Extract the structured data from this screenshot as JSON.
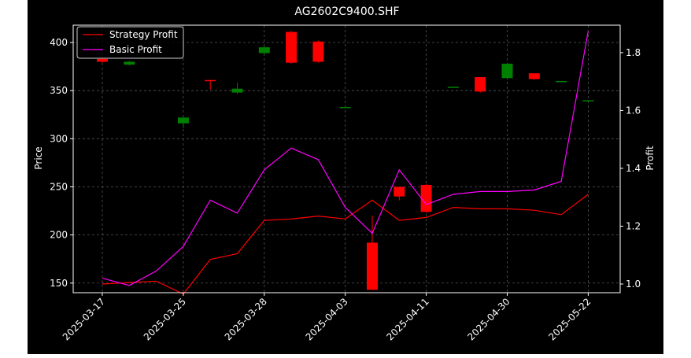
{
  "chart_data": {
    "type": "candlestick+line",
    "title": "AG2602C9400.SHF",
    "xlabel": "",
    "ylabel_left": "Price",
    "ylabel_right": "Profit",
    "ylim_left": [
      140,
      418
    ],
    "ylim_right": [
      0.97,
      1.895
    ],
    "yticks_left": [
      "150",
      "200",
      "250",
      "300",
      "350",
      "400"
    ],
    "yticks_right": [
      "1.0",
      "1.2",
      "1.4",
      "1.6",
      "1.8"
    ],
    "xtick_labels": [
      "2025-03-17",
      "2025-03-25",
      "2025-03-28",
      "2025-04-03",
      "2025-04-11",
      "2025-04-30",
      "2025-05-22"
    ],
    "xtick_indices": [
      0,
      3,
      6,
      9,
      12,
      15,
      18
    ],
    "grid": true,
    "legend_position": "upper-left",
    "series": [
      {
        "name": "Strategy Profit",
        "color": "#ff0000",
        "values": [
          1.0,
          1.005,
          1.01,
          0.965,
          1.085,
          1.105,
          1.22,
          1.225,
          1.235,
          1.225,
          1.29,
          1.22,
          1.23,
          1.265,
          1.26,
          1.26,
          1.255,
          1.24,
          1.31
        ]
      },
      {
        "name": "Basic Profit",
        "color": "#ff00ff",
        "values": [
          1.02,
          0.995,
          1.045,
          1.13,
          1.29,
          1.245,
          1.395,
          1.47,
          1.43,
          1.265,
          1.175,
          1.395,
          1.275,
          1.31,
          1.32,
          1.32,
          1.325,
          1.355,
          1.875
        ]
      }
    ],
    "candles": [
      {
        "open": 383,
        "close": 380,
        "high": 384,
        "low": 379
      },
      {
        "open": 377,
        "close": 380,
        "high": 381,
        "low": 376
      },
      null,
      {
        "open": 316,
        "close": 322,
        "high": 323,
        "low": 311
      },
      {
        "open": 361,
        "close": 360,
        "high": 361,
        "low": 351
      },
      {
        "open": 348,
        "close": 352,
        "high": 358,
        "low": 347
      },
      {
        "open": 389,
        "close": 395,
        "high": 396,
        "low": 388
      },
      {
        "open": 411,
        "close": 379,
        "high": 412,
        "low": 378
      },
      {
        "open": 401,
        "close": 380,
        "high": 402,
        "low": 379
      },
      {
        "open": 333,
        "close": 333,
        "high": 333,
        "low": 333
      },
      {
        "open": 192,
        "close": 143,
        "high": 220,
        "low": 143
      },
      {
        "open": 250,
        "close": 240,
        "high": 250,
        "low": 236
      },
      {
        "open": 252,
        "close": 224,
        "high": 253,
        "low": 223
      },
      {
        "open": 354,
        "close": 354,
        "high": 354,
        "low": 354
      },
      {
        "open": 364,
        "close": 349,
        "high": 364,
        "low": 348
      },
      {
        "open": 363,
        "close": 378,
        "high": 379,
        "low": 362
      },
      {
        "open": 368,
        "close": 362,
        "high": 368,
        "low": 361
      },
      {
        "open": 360,
        "close": 360,
        "high": 360,
        "low": 360
      },
      {
        "open": 339,
        "close": 340,
        "high": 340,
        "low": 339
      }
    ],
    "up_color": "#008000",
    "down_color": "#ff0000"
  }
}
